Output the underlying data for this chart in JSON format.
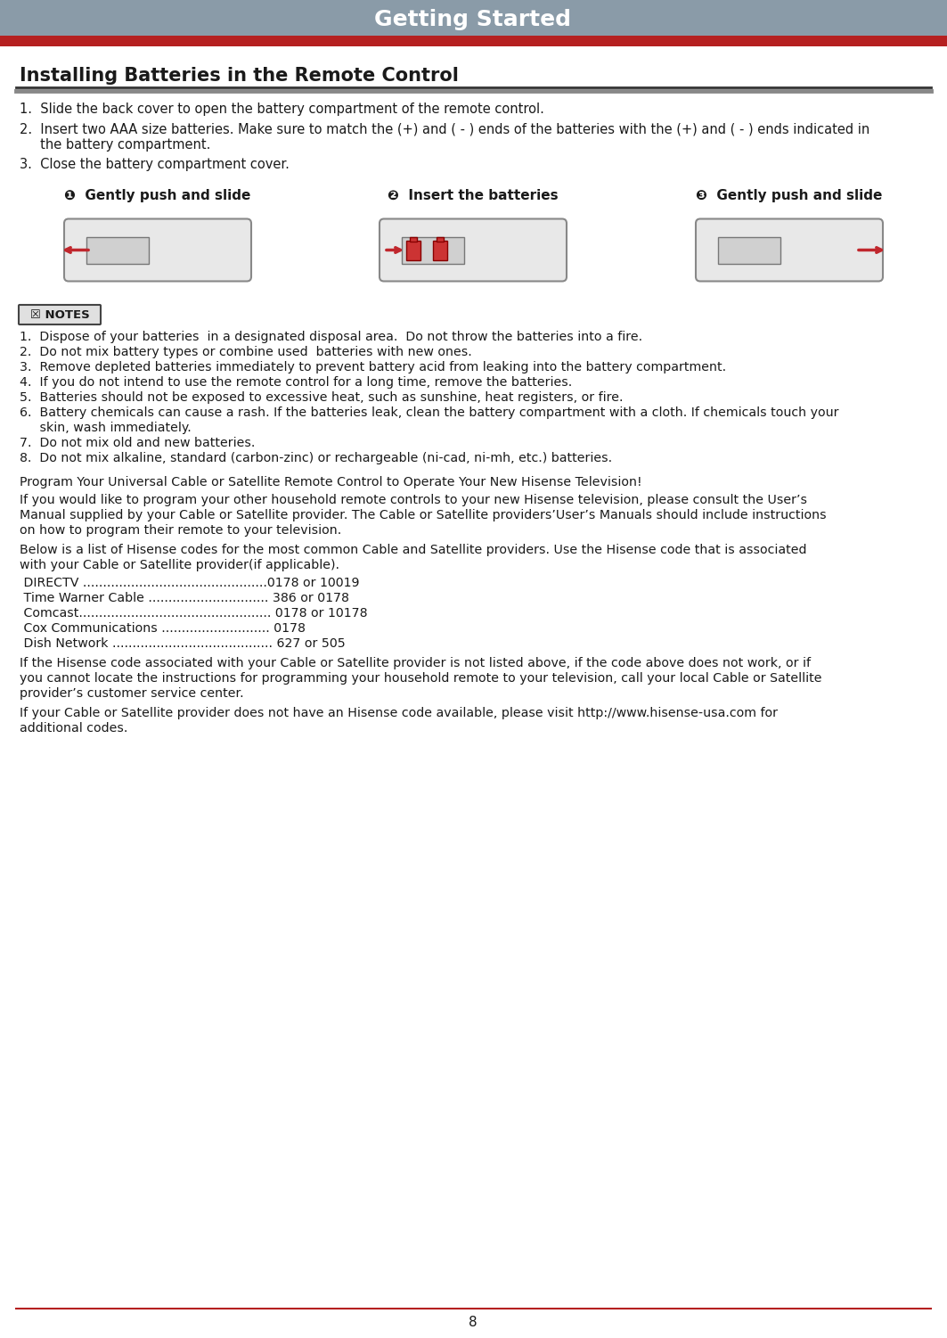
{
  "page_bg": "#ffffff",
  "header_bg_top": "#8a9ba8",
  "header_bg_bot": "#7a8b98",
  "header_text": "Getting Started",
  "header_red_bar_color": "#b52020",
  "header_text_color": "#ffffff",
  "title": "Installing Batteries in the Remote Control",
  "title_line1_color": "#333333",
  "title_line2_color": "#888888",
  "step1_text": "1.  Slide the back cover to open the battery compartment of the remote control.",
  "step2_line1": "2.  Insert two AAA size batteries. Make sure to match the (+) and ( - ) ends of the batteries with the (+) and ( - ) ends indicated in",
  "step2_line2": "     the battery compartment.",
  "step3_text": "3.  Close the battery compartment cover.",
  "step_labels": [
    "❶  Gently push and slide",
    "❷  Insert the batteries",
    "❸  Gently push and slide"
  ],
  "notes_label": "☒ NOTES",
  "notes": [
    "1.  Dispose of your batteries  in a designated disposal area.  Do not throw the batteries into a fire.",
    "2.  Do not mix battery types or combine used  batteries with new ones.",
    "3.  Remove depleted batteries immediately to prevent battery acid from leaking into the battery compartment.",
    "4.  If you do not intend to use the remote control for a long time, remove the batteries.",
    "5.  Batteries should not be exposed to excessive heat, such as sunshine, heat registers, or fire.",
    "6.  Battery chemicals can cause a rash. If the batteries leak, clean the battery compartment with a cloth. If chemicals touch your",
    "     skin, wash immediately.",
    "7.  Do not mix old and new batteries.",
    "8.  Do not mix alkaline, standard (carbon-zinc) or rechargeable (ni-cad, ni-mh, etc.) batteries."
  ],
  "program_title": "Program Your Universal Cable or Satellite Remote Control to Operate Your New Hisense Television!",
  "para1_lines": [
    "If you would like to program your other household remote controls to your new Hisense television, please consult the User’s",
    "Manual supplied by your Cable or Satellite provider. The Cable or Satellite providers’User’s Manuals should include instructions",
    "on how to program their remote to your television."
  ],
  "para2_lines": [
    "Below is a list of Hisense codes for the most common Cable and Satellite providers. Use the Hisense code that is associated",
    "with your Cable or Satellite provider(if applicable)."
  ],
  "provider_codes": [
    " DIRECTV ..............................................0178 or 10019",
    " Time Warner Cable .............................. 386 or 0178",
    " Comcast................................................ 0178 or 10178",
    " Cox Communications ........................... 0178",
    " Dish Network ........................................ 627 or 505"
  ],
  "para3_lines": [
    "If the Hisense code associated with your Cable or Satellite provider is not listed above, if the code above does not work, or if",
    "you cannot locate the instructions for programming your household remote to your television, call your local Cable or Satellite",
    "provider’s customer service center."
  ],
  "para4_lines": [
    "If your Cable or Satellite provider does not have an Hisense code available, please visit http://www.hisense-usa.com for",
    "additional codes."
  ],
  "page_number": "8",
  "footer_line_color": "#b52020",
  "text_color": "#1a1a1a",
  "notes_bg": "#e0e0e0",
  "notes_border": "#444444"
}
